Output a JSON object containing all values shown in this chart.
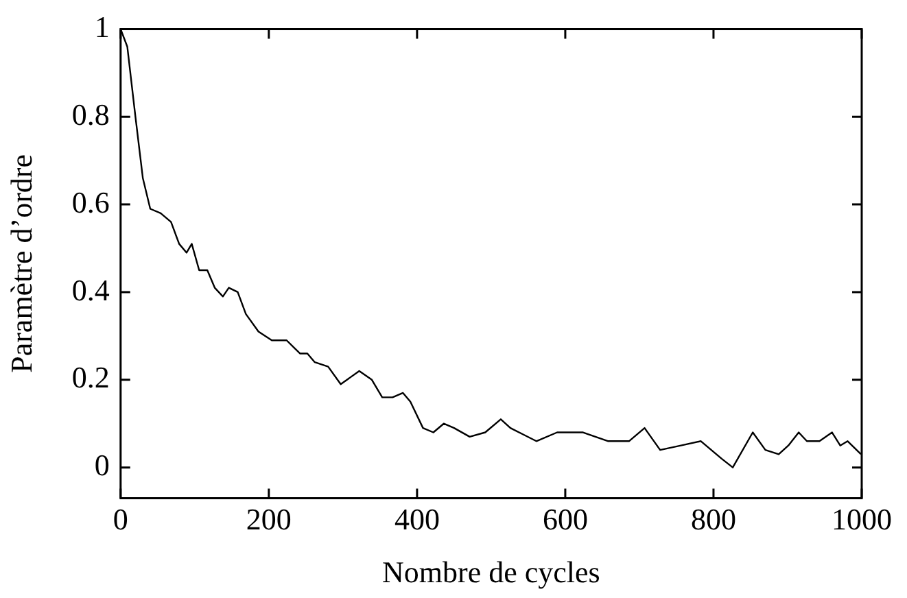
{
  "chart_data": {
    "type": "line",
    "xlabel": "Nombre de cycles",
    "ylabel": "Paramètre d’ordre",
    "grid": false,
    "legend": false,
    "marker": "none",
    "line_style": "solid",
    "xlim": [
      0,
      1000
    ],
    "ylim": [
      -0.07,
      1
    ],
    "xticks": [
      0,
      200,
      400,
      600,
      800,
      1000
    ],
    "yticks": [
      0,
      0.2,
      0.4,
      0.6,
      0.8,
      1
    ],
    "series": [
      {
        "color": "#000000",
        "x": [
          0,
          9,
          20,
          30,
          40,
          54,
          68,
          79,
          89,
          96,
          106,
          117,
          127,
          138,
          146,
          158,
          169,
          186,
          204,
          224,
          242,
          252,
          262,
          280,
          297,
          322,
          339,
          353,
          367,
          381,
          391,
          408,
          422,
          436,
          450,
          471,
          492,
          513,
          526,
          561,
          589,
          624,
          658,
          686,
          707,
          728,
          756,
          783,
          811,
          826,
          853,
          870,
          888,
          901,
          915,
          926,
          943,
          960,
          971,
          981,
          999
        ],
        "values": [
          1.0,
          0.96,
          0.8,
          0.66,
          0.59,
          0.58,
          0.56,
          0.51,
          0.49,
          0.51,
          0.45,
          0.45,
          0.41,
          0.39,
          0.41,
          0.4,
          0.35,
          0.31,
          0.29,
          0.29,
          0.26,
          0.26,
          0.24,
          0.23,
          0.19,
          0.22,
          0.2,
          0.16,
          0.16,
          0.17,
          0.15,
          0.09,
          0.08,
          0.1,
          0.09,
          0.07,
          0.08,
          0.11,
          0.09,
          0.06,
          0.08,
          0.08,
          0.06,
          0.06,
          0.09,
          0.04,
          0.05,
          0.06,
          0.02,
          0.0,
          0.08,
          0.04,
          0.03,
          0.05,
          0.08,
          0.06,
          0.06,
          0.08,
          0.05,
          0.06,
          0.03
        ]
      }
    ]
  }
}
